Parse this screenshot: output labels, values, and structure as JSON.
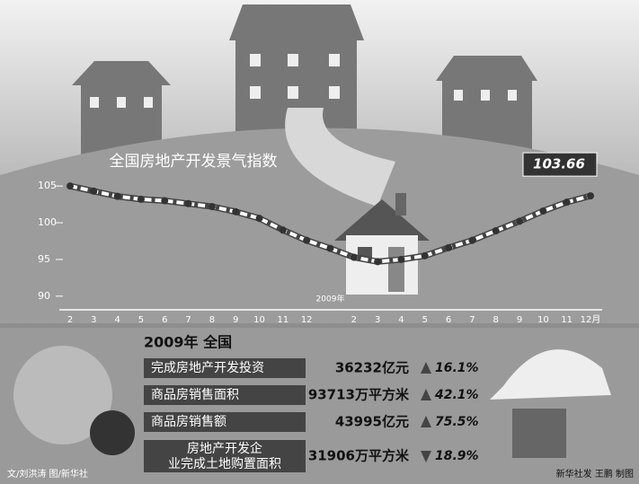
{
  "chart_data": {
    "type": "line",
    "title": "全国房地产开发景气指数",
    "categories": [
      "2",
      "3",
      "4",
      "5",
      "6",
      "7",
      "8",
      "9",
      "10",
      "11",
      "12",
      null,
      "2",
      "3",
      "4",
      "5",
      "6",
      "7",
      "8",
      "9",
      "10",
      "11",
      "12月"
    ],
    "values": [
      105.0,
      104.3,
      103.6,
      103.2,
      103.0,
      102.6,
      102.2,
      101.5,
      100.6,
      99.0,
      97.6,
      96.5,
      95.3,
      94.7,
      95.0,
      95.5,
      96.6,
      97.6,
      98.9,
      100.2,
      101.6,
      102.8,
      103.66
    ],
    "color": "#ffffff",
    "ylim": [
      89,
      106
    ],
    "yticks": [
      90,
      95,
      100,
      105
    ],
    "annotations": [
      {
        "text": "103.66",
        "index": 22
      },
      {
        "text": "2009年",
        "index": 11
      }
    ]
  },
  "summary": {
    "heading": "2009年  全国",
    "rows": [
      {
        "label": "完成房地产开发投资",
        "amount": "36232亿元",
        "change": "16.1%",
        "direction": "up"
      },
      {
        "label": "商品房销售面积",
        "amount": "93713万平方米",
        "change": "42.1%",
        "direction": "up"
      },
      {
        "label": "商品房销售额",
        "amount": "43995亿元",
        "change": "75.5%",
        "direction": "up"
      },
      {
        "label": "房地产开发企业完成土地购置面积",
        "amount": "31906万平方米",
        "change": "18.9%",
        "direction": "down"
      }
    ]
  },
  "credits": {
    "left": "文/刘洪涛 图/新华社",
    "right": "新华社发 王鹏 制图"
  }
}
